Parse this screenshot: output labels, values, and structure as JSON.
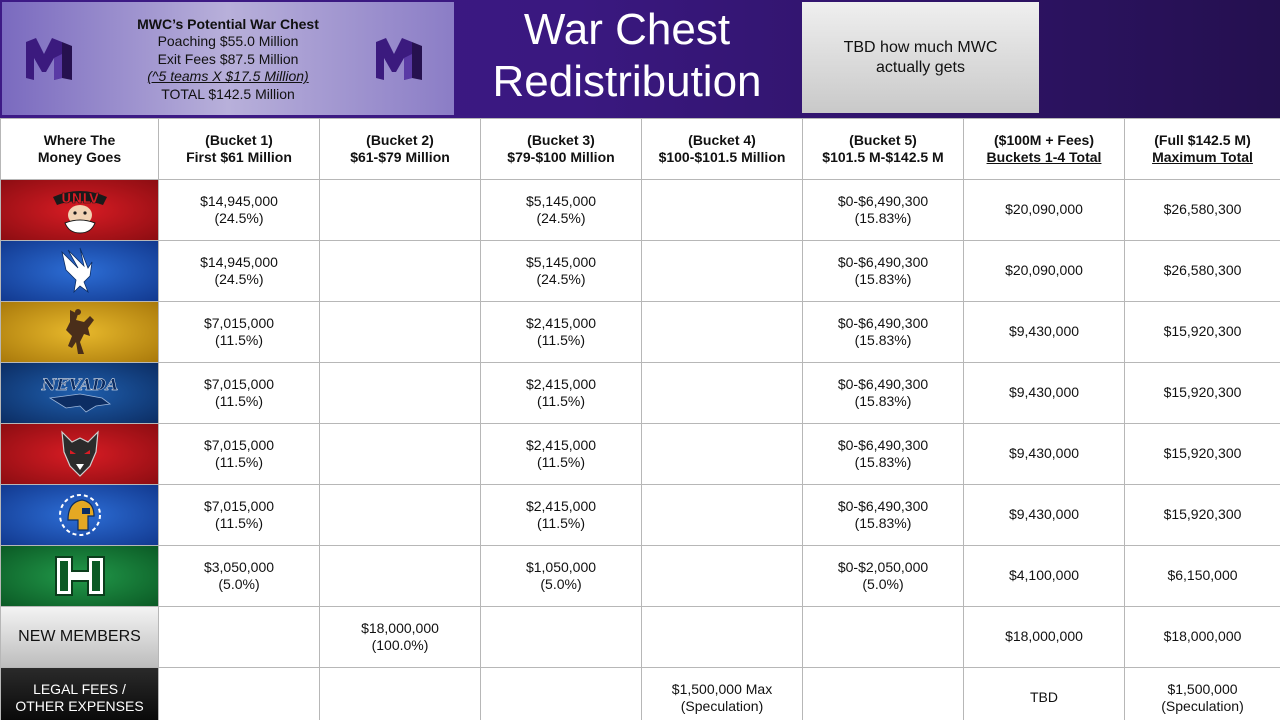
{
  "header": {
    "chest_title": "MWC’s Potential War Chest",
    "poaching": "Poaching $55.0 Million",
    "exit_fees": "Exit Fees $87.5 Million",
    "calc": "(^5 teams X $17.5 Million)",
    "total": "TOTAL $142.5 Million",
    "title_line1": "War Chest",
    "title_line2": "Redistribution",
    "tbd_note": "TBD how much MWC actually gets",
    "logo_icon": "mw-logo-icon",
    "accent_purple": "#3d1a86"
  },
  "table": {
    "headers": [
      {
        "line1": "Where The",
        "line2": "Money Goes"
      },
      {
        "line1": "(Bucket 1)",
        "line2": "First $61 Million"
      },
      {
        "line1": "(Bucket 2)",
        "line2": "$61-$79 Million"
      },
      {
        "line1": "(Bucket 3)",
        "line2": "$79-$100 Million"
      },
      {
        "line1": "(Bucket 4)",
        "line2": "$100-$101.5 Million"
      },
      {
        "line1": "(Bucket 5)",
        "line2": "$101.5 M-$142.5 M"
      },
      {
        "line1": "($100M + Fees)",
        "line2": "Buckets 1-4 Total"
      },
      {
        "line1": "(Full $142.5 M)",
        "line2": "Maximum Total"
      }
    ],
    "rows": [
      {
        "logo": "unlv-logo-icon",
        "b1": [
          "$14,945,000",
          "(24.5%)"
        ],
        "b2": [
          "",
          ""
        ],
        "b3": [
          "$5,145,000",
          "(24.5%)"
        ],
        "b4": [
          "",
          ""
        ],
        "b5": [
          "$0-$6,490,300",
          "(15.83%)"
        ],
        "t1": "$20,090,000",
        "t2": "$26,580,300"
      },
      {
        "logo": "air-force-falcon-icon",
        "b1": [
          "$14,945,000",
          "(24.5%)"
        ],
        "b2": [
          "",
          ""
        ],
        "b3": [
          "$5,145,000",
          "(24.5%)"
        ],
        "b4": [
          "",
          ""
        ],
        "b5": [
          "$0-$6,490,300",
          "(15.83%)"
        ],
        "t1": "$20,090,000",
        "t2": "$26,580,300"
      },
      {
        "logo": "wyoming-bucking-horse-icon",
        "b1": [
          "$7,015,000",
          "(11.5%)"
        ],
        "b2": [
          "",
          ""
        ],
        "b3": [
          "$2,415,000",
          "(11.5%)"
        ],
        "b4": [
          "",
          ""
        ],
        "b5": [
          "$0-$6,490,300",
          "(15.83%)"
        ],
        "t1": "$9,430,000",
        "t2": "$15,920,300"
      },
      {
        "logo": "nevada-wolf-icon",
        "logo_text": "NEVADA",
        "b1": [
          "$7,015,000",
          "(11.5%)"
        ],
        "b2": [
          "",
          ""
        ],
        "b3": [
          "$2,415,000",
          "(11.5%)"
        ],
        "b4": [
          "",
          ""
        ],
        "b5": [
          "$0-$6,490,300",
          "(15.83%)"
        ],
        "t1": "$9,430,000",
        "t2": "$15,920,300"
      },
      {
        "logo": "new-mexico-lobo-icon",
        "b1": [
          "$7,015,000",
          "(11.5%)"
        ],
        "b2": [
          "",
          ""
        ],
        "b3": [
          "$2,415,000",
          "(11.5%)"
        ],
        "b4": [
          "",
          ""
        ],
        "b5": [
          "$0-$6,490,300",
          "(15.83%)"
        ],
        "t1": "$9,430,000",
        "t2": "$15,920,300"
      },
      {
        "logo": "sjsu-spartan-icon",
        "b1": [
          "$7,015,000",
          "(11.5%)"
        ],
        "b2": [
          "",
          ""
        ],
        "b3": [
          "$2,415,000",
          "(11.5%)"
        ],
        "b4": [
          "",
          ""
        ],
        "b5": [
          "$0-$6,490,300",
          "(15.83%)"
        ],
        "t1": "$9,430,000",
        "t2": "$15,920,300"
      },
      {
        "logo": "hawaii-h-icon",
        "b1": [
          "$3,050,000",
          "(5.0%)"
        ],
        "b2": [
          "",
          ""
        ],
        "b3": [
          "$1,050,000",
          "(5.0%)"
        ],
        "b4": [
          "",
          ""
        ],
        "b5": [
          "$0-$2,050,000",
          "(5.0%)"
        ],
        "t1": "$4,100,000",
        "t2": "$6,150,000"
      },
      {
        "label": "NEW MEMBERS",
        "b1": [
          "",
          ""
        ],
        "b2": [
          "$18,000,000",
          "(100.0%)"
        ],
        "b3": [
          "",
          ""
        ],
        "b4": [
          "",
          ""
        ],
        "b5": [
          "",
          ""
        ],
        "t1": "$18,000,000",
        "t2": "$18,000,000"
      },
      {
        "label1": "LEGAL FEES /",
        "label2": "OTHER EXPENSES",
        "b1": [
          "",
          ""
        ],
        "b2": [
          "",
          ""
        ],
        "b3": [
          "",
          ""
        ],
        "b4": [
          "$1,500,000 Max",
          "(Speculation)"
        ],
        "b5": [
          "",
          ""
        ],
        "t1": "TBD",
        "t2": [
          "$1,500,000",
          "(Speculation)"
        ]
      }
    ]
  }
}
